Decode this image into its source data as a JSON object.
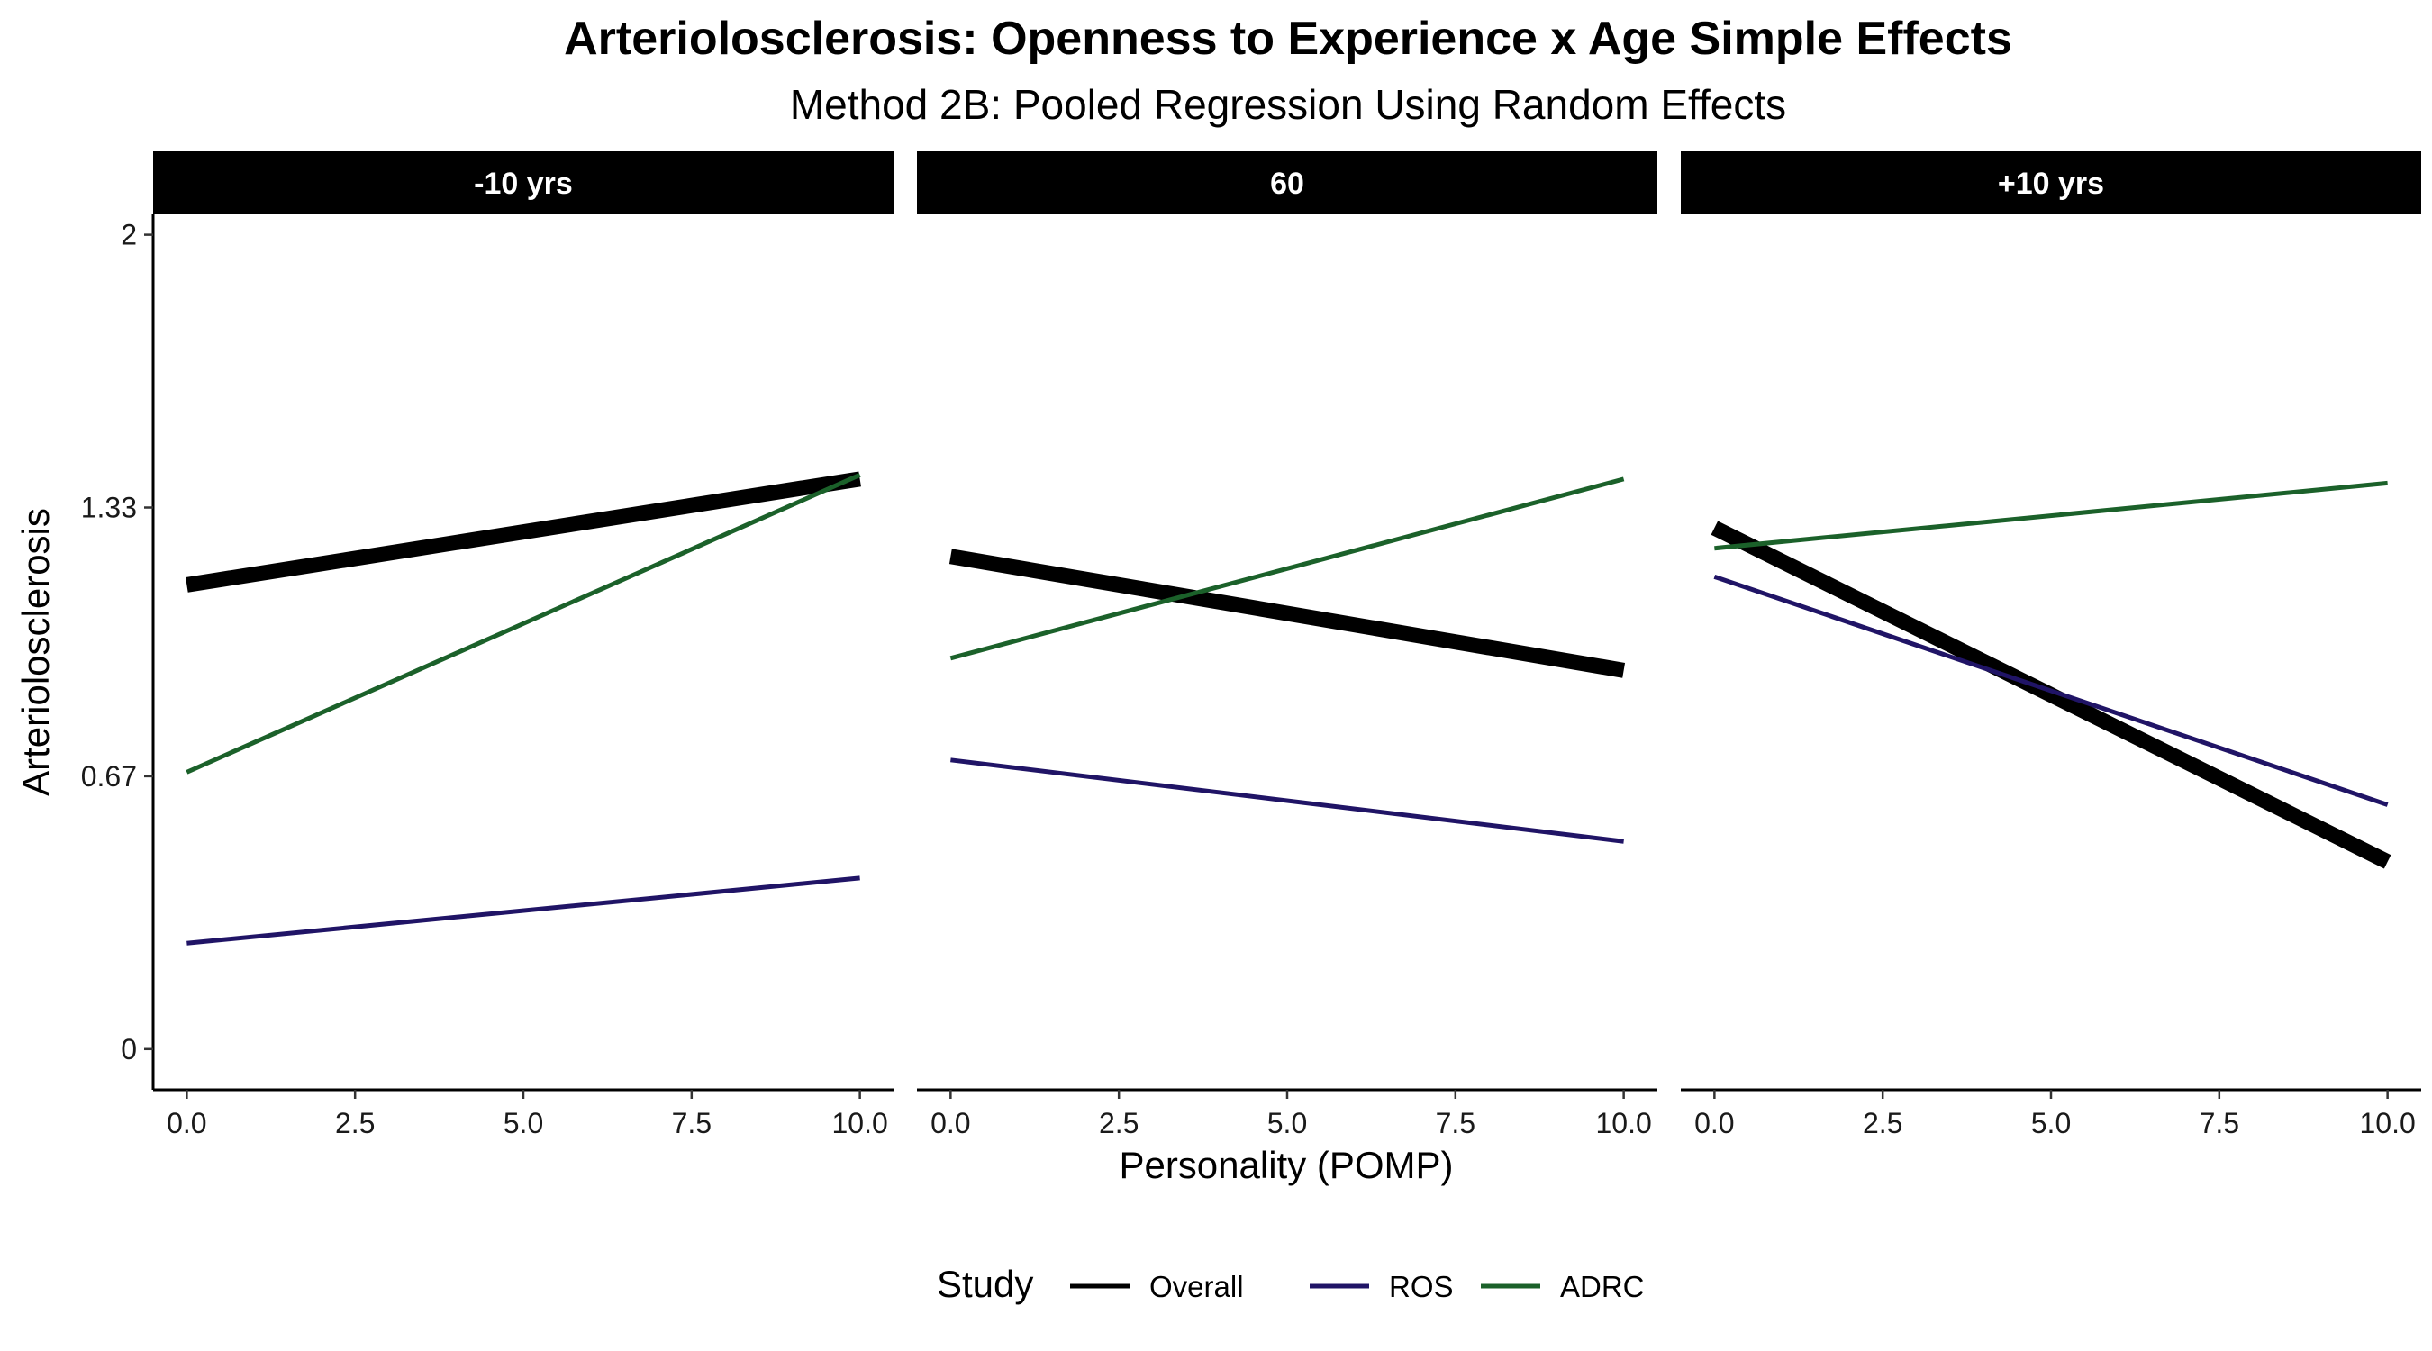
{
  "chart_data": {
    "type": "line",
    "title": "Arteriolosclerosis: Openness to Experience x Age Simple Effects",
    "subtitle": "Method 2B: Pooled Regression Using Random Effects",
    "xlabel": "Personality (POMP)",
    "ylabel": "Arteriolosclerosis",
    "xlim": [
      -0.5,
      10.5
    ],
    "ylim": [
      -0.1,
      2.05
    ],
    "x_ticks": [
      0,
      2.5,
      5,
      7.5,
      10
    ],
    "x_tick_labels": [
      "0.0",
      "2.5",
      "5.0",
      "7.5",
      "10.0"
    ],
    "y_ticks": [
      0,
      0.67,
      1.33,
      2
    ],
    "y_tick_labels": [
      "0",
      "0.67",
      "1.33",
      "2"
    ],
    "grid": false,
    "legend": {
      "title": "Study",
      "position": "bottom"
    },
    "series_styles": [
      {
        "name": "Overall",
        "color": "#000000",
        "thick": true
      },
      {
        "name": "ROS",
        "color": "#201466",
        "thick": false
      },
      {
        "name": "ADRC",
        "color": "#1b612a",
        "thick": false
      }
    ],
    "panels": [
      {
        "label": "-10 yrs",
        "series": [
          {
            "name": "Overall",
            "x": [
              0,
              10
            ],
            "y": [
              1.14,
              1.4
            ]
          },
          {
            "name": "ROS",
            "x": [
              0,
              10
            ],
            "y": [
              0.26,
              0.42
            ]
          },
          {
            "name": "ADRC",
            "x": [
              0,
              10
            ],
            "y": [
              0.68,
              1.41
            ]
          }
        ]
      },
      {
        "label": "60",
        "series": [
          {
            "name": "Overall",
            "x": [
              0,
              10
            ],
            "y": [
              1.21,
              0.93
            ]
          },
          {
            "name": "ROS",
            "x": [
              0,
              10
            ],
            "y": [
              0.71,
              0.51
            ]
          },
          {
            "name": "ADRC",
            "x": [
              0,
              10
            ],
            "y": [
              0.96,
              1.4
            ]
          }
        ]
      },
      {
        "label": "+10 yrs",
        "series": [
          {
            "name": "Overall",
            "x": [
              0,
              10
            ],
            "y": [
              1.28,
              0.46
            ]
          },
          {
            "name": "ROS",
            "x": [
              0,
              10
            ],
            "y": [
              1.16,
              0.6
            ]
          },
          {
            "name": "ADRC",
            "x": [
              0,
              10
            ],
            "y": [
              1.23,
              1.39
            ]
          }
        ]
      }
    ]
  }
}
